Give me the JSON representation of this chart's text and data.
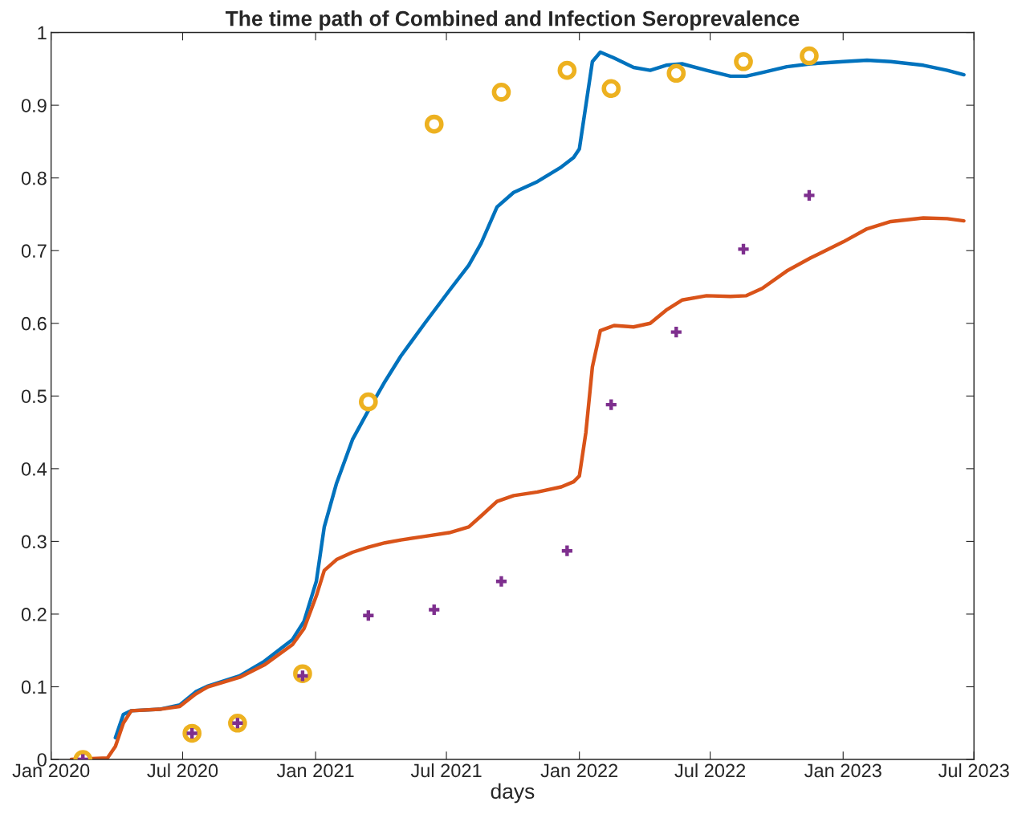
{
  "chart_data": {
    "type": "line",
    "title": "The time path of Combined and Infection Seroprevalence",
    "xlabel": "days",
    "x": [
      "2020-01-29",
      "2020-03-19",
      "2020-03-30",
      "2020-04-10",
      "2020-04-21",
      "2020-05-30",
      "2020-06-27",
      "2020-07-19",
      "2020-08-05",
      "2020-09-18",
      "2020-10-22",
      "2020-11-30",
      "2020-12-16",
      "2021-01-02",
      "2021-01-13",
      "2021-01-30",
      "2021-02-21",
      "2021-03-15",
      "2021-04-07",
      "2021-04-29",
      "2021-06-01",
      "2021-07-05",
      "2021-08-01",
      "2021-08-18",
      "2021-09-09",
      "2021-10-02",
      "2021-11-04",
      "2021-12-07",
      "2021-12-24",
      "2022-01-01",
      "2022-01-10",
      "2022-01-19",
      "2022-01-30",
      "2022-02-18",
      "2022-03-17",
      "2022-04-09",
      "2022-05-01",
      "2022-05-23",
      "2022-06-26",
      "2022-07-29",
      "2022-08-20",
      "2022-09-11",
      "2022-10-15",
      "2022-11-17",
      "2023-01-01",
      "2023-02-03",
      "2023-03-08",
      "2023-04-22",
      "2023-05-25",
      "2023-06-17"
    ],
    "series": [
      {
        "color": "#0072bd",
        "marker": "none",
        "values": [
          null,
          null,
          0.03,
          0.062,
          0.067,
          0.069,
          0.075,
          0.093,
          0.101,
          0.115,
          0.135,
          0.165,
          0.19,
          0.245,
          0.32,
          0.38,
          0.44,
          0.48,
          0.52,
          0.555,
          0.6,
          0.645,
          0.68,
          0.71,
          0.76,
          0.78,
          0.795,
          0.815,
          0.828,
          0.84,
          0.9,
          0.96,
          0.973,
          0.965,
          0.952,
          0.948,
          0.955,
          0.957,
          0.948,
          0.94,
          0.94,
          0.945,
          0.953,
          0.957,
          0.96,
          0.962,
          0.96,
          0.955,
          0.948,
          0.942
        ]
      },
      {
        "color": "#d95319",
        "marker": "none",
        "values": [
          0,
          0.002,
          0.018,
          0.05,
          0.067,
          0.069,
          0.073,
          0.09,
          0.1,
          0.113,
          0.13,
          0.158,
          0.18,
          0.225,
          0.26,
          0.275,
          0.285,
          0.292,
          0.298,
          0.302,
          0.307,
          0.312,
          0.32,
          0.335,
          0.355,
          0.363,
          0.368,
          0.375,
          0.382,
          0.39,
          0.45,
          0.54,
          0.59,
          0.597,
          0.595,
          0.6,
          0.618,
          0.632,
          0.638,
          0.637,
          0.638,
          0.648,
          0.672,
          0.69,
          0.712,
          0.73,
          0.74,
          0.745,
          0.744,
          0.741
        ]
      },
      {
        "type": "scatter",
        "color": "#edb120",
        "marker": "circle",
        "x": [
          "2020-02-14",
          "2020-07-14",
          "2020-09-15",
          "2020-12-14",
          "2021-03-15",
          "2021-06-14",
          "2021-09-15",
          "2021-12-15",
          "2022-02-14",
          "2022-05-15",
          "2022-08-16",
          "2022-11-15"
        ],
        "values": [
          0,
          0.036,
          0.05,
          0.118,
          0.492,
          0.874,
          0.918,
          0.948,
          0.923,
          0.944,
          0.96,
          0.968
        ]
      },
      {
        "type": "scatter",
        "color": "#7e2f8e",
        "marker": "cross",
        "x": [
          "2020-02-14",
          "2020-07-14",
          "2020-09-15",
          "2020-12-14",
          "2021-03-15",
          "2021-06-14",
          "2021-09-15",
          "2021-12-15",
          "2022-02-14",
          "2022-05-15",
          "2022-08-16",
          "2022-11-15"
        ],
        "values": [
          0,
          0.036,
          0.05,
          0.115,
          0.198,
          0.206,
          0.245,
          0.287,
          0.488,
          0.588,
          0.702,
          0.776
        ]
      }
    ],
    "xlim": [
      "2020-01-01",
      "2023-07-01"
    ],
    "xticks": [
      {
        "value": "2020-01-01",
        "label": "Jan 2020"
      },
      {
        "value": "2020-07-01",
        "label": "Jul 2020"
      },
      {
        "value": "2021-01-01",
        "label": "Jan 2021"
      },
      {
        "value": "2021-07-01",
        "label": "Jul 2021"
      },
      {
        "value": "2022-01-01",
        "label": "Jan 2022"
      },
      {
        "value": "2022-07-01",
        "label": "Jul 2022"
      },
      {
        "value": "2023-01-01",
        "label": "Jan 2023"
      },
      {
        "value": "2023-07-01",
        "label": "Jul 2023"
      }
    ],
    "ylim": [
      0,
      1
    ],
    "yticks": [
      0,
      0.1,
      0.2,
      0.3,
      0.4,
      0.5,
      0.6,
      0.7,
      0.8,
      0.9,
      1
    ],
    "grid": false,
    "legend": false
  }
}
